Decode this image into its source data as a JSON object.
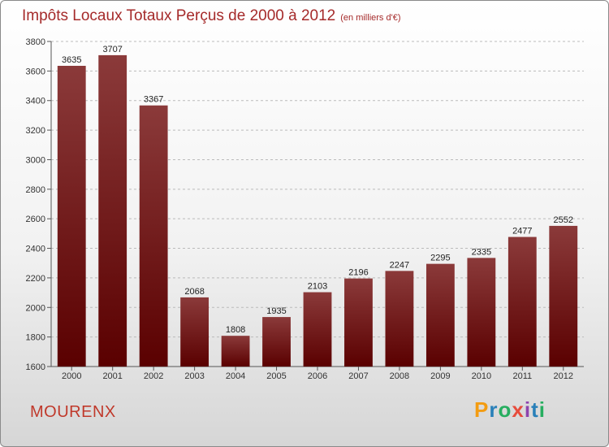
{
  "header": {
    "title": "Impôts Locaux Totaux Perçus de 2000 à 2012",
    "unit": "(en milliers d'€)"
  },
  "footer": {
    "town": "MOURENX",
    "brand_letters": [
      "P",
      "r",
      "o",
      "x",
      "i",
      "t",
      "i"
    ],
    "brand_colors": [
      "#f39c12",
      "#2980b9",
      "#27ae60",
      "#e74c3c",
      "#8e44ad",
      "#2980b9",
      "#27ae60"
    ]
  },
  "colors": {
    "bar_top": "#8b3a3a",
    "bar_bottom": "#5a0000",
    "grid": "#bbbbbb",
    "title": "#a52a2a"
  },
  "chart_data": {
    "type": "bar",
    "title": "Impôts Locaux Totaux Perçus de 2000 à 2012",
    "subtitle": "(en milliers d'€)",
    "categories": [
      "2000",
      "2001",
      "2002",
      "2003",
      "2004",
      "2005",
      "2006",
      "2007",
      "2008",
      "2009",
      "2010",
      "2011",
      "2012"
    ],
    "values": [
      3635,
      3707,
      3367,
      2068,
      1808,
      1935,
      2103,
      2196,
      2247,
      2295,
      2335,
      2477,
      2552
    ],
    "ylim": [
      1600,
      3800
    ],
    "yticks": [
      1600,
      1800,
      2000,
      2200,
      2400,
      2600,
      2800,
      3000,
      3200,
      3400,
      3600,
      3800
    ],
    "grid": true,
    "data_labels": true
  }
}
